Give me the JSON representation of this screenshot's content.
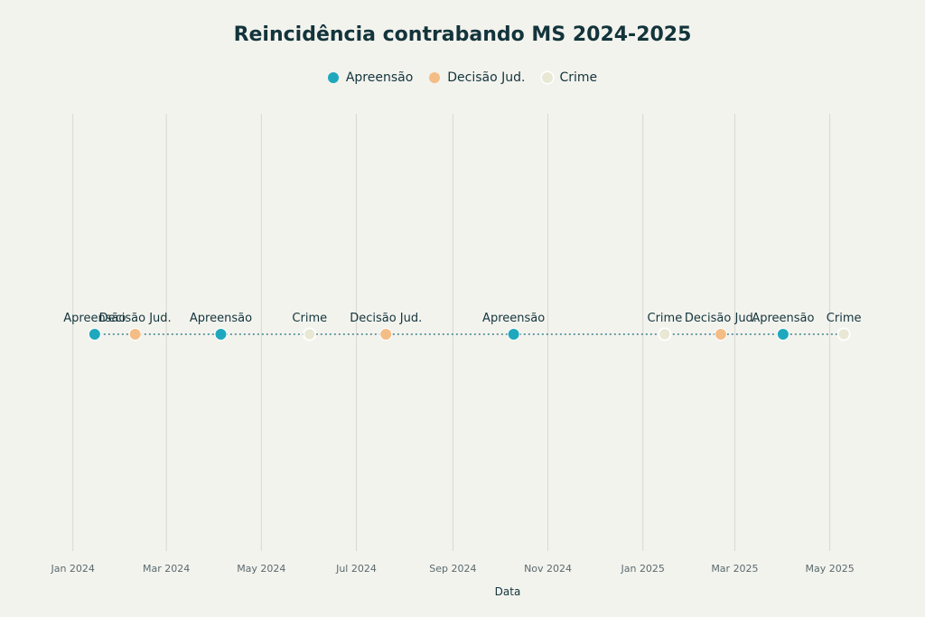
{
  "chart_data": {
    "type": "scatter",
    "title": "Reincidência contrabando MS 2024-2025",
    "xlabel": "Data",
    "ylabel": "",
    "x_axis_type": "date",
    "xlim": [
      "2023-12-20",
      "2025-05-25"
    ],
    "x_ticks": [
      {
        "date": "2024-01-01",
        "label": "Jan 2024"
      },
      {
        "date": "2024-03-01",
        "label": "Mar 2024"
      },
      {
        "date": "2024-05-01",
        "label": "May 2024"
      },
      {
        "date": "2024-07-01",
        "label": "Jul 2024"
      },
      {
        "date": "2024-09-01",
        "label": "Sep 2024"
      },
      {
        "date": "2024-11-01",
        "label": "Nov 2024"
      },
      {
        "date": "2025-01-01",
        "label": "Jan 2025"
      },
      {
        "date": "2025-03-01",
        "label": "Mar 2025"
      },
      {
        "date": "2025-05-01",
        "label": "May 2025"
      }
    ],
    "grid": "vertical",
    "legend_position": "top-center",
    "series": [
      {
        "name": "Apreensão",
        "color": "#1fa8bd",
        "outlined": false
      },
      {
        "name": "Decisão Jud.",
        "color": "#f4bd86",
        "outlined": false
      },
      {
        "name": "Crime",
        "color": "#e8e8d4",
        "outlined": true
      }
    ],
    "events": [
      {
        "date": "2024-01-15",
        "type": "Apreensão",
        "label": "Apreensão"
      },
      {
        "date": "2024-02-10",
        "type": "Decisão Jud.",
        "label": "Decisão Jud."
      },
      {
        "date": "2024-04-05",
        "type": "Apreensão",
        "label": "Apreensão"
      },
      {
        "date": "2024-06-01",
        "type": "Crime",
        "label": "Crime"
      },
      {
        "date": "2024-07-20",
        "type": "Decisão Jud.",
        "label": "Decisão Jud."
      },
      {
        "date": "2024-10-10",
        "type": "Apreensão",
        "label": "Apreensão"
      },
      {
        "date": "2025-01-15",
        "type": "Crime",
        "label": "Crime"
      },
      {
        "date": "2025-02-20",
        "type": "Decisão Jud.",
        "label": "Decisão Jud."
      },
      {
        "date": "2025-04-01",
        "type": "Apreensão",
        "label": "Apreensão"
      },
      {
        "date": "2025-05-10",
        "type": "Crime",
        "label": "Crime"
      }
    ]
  }
}
